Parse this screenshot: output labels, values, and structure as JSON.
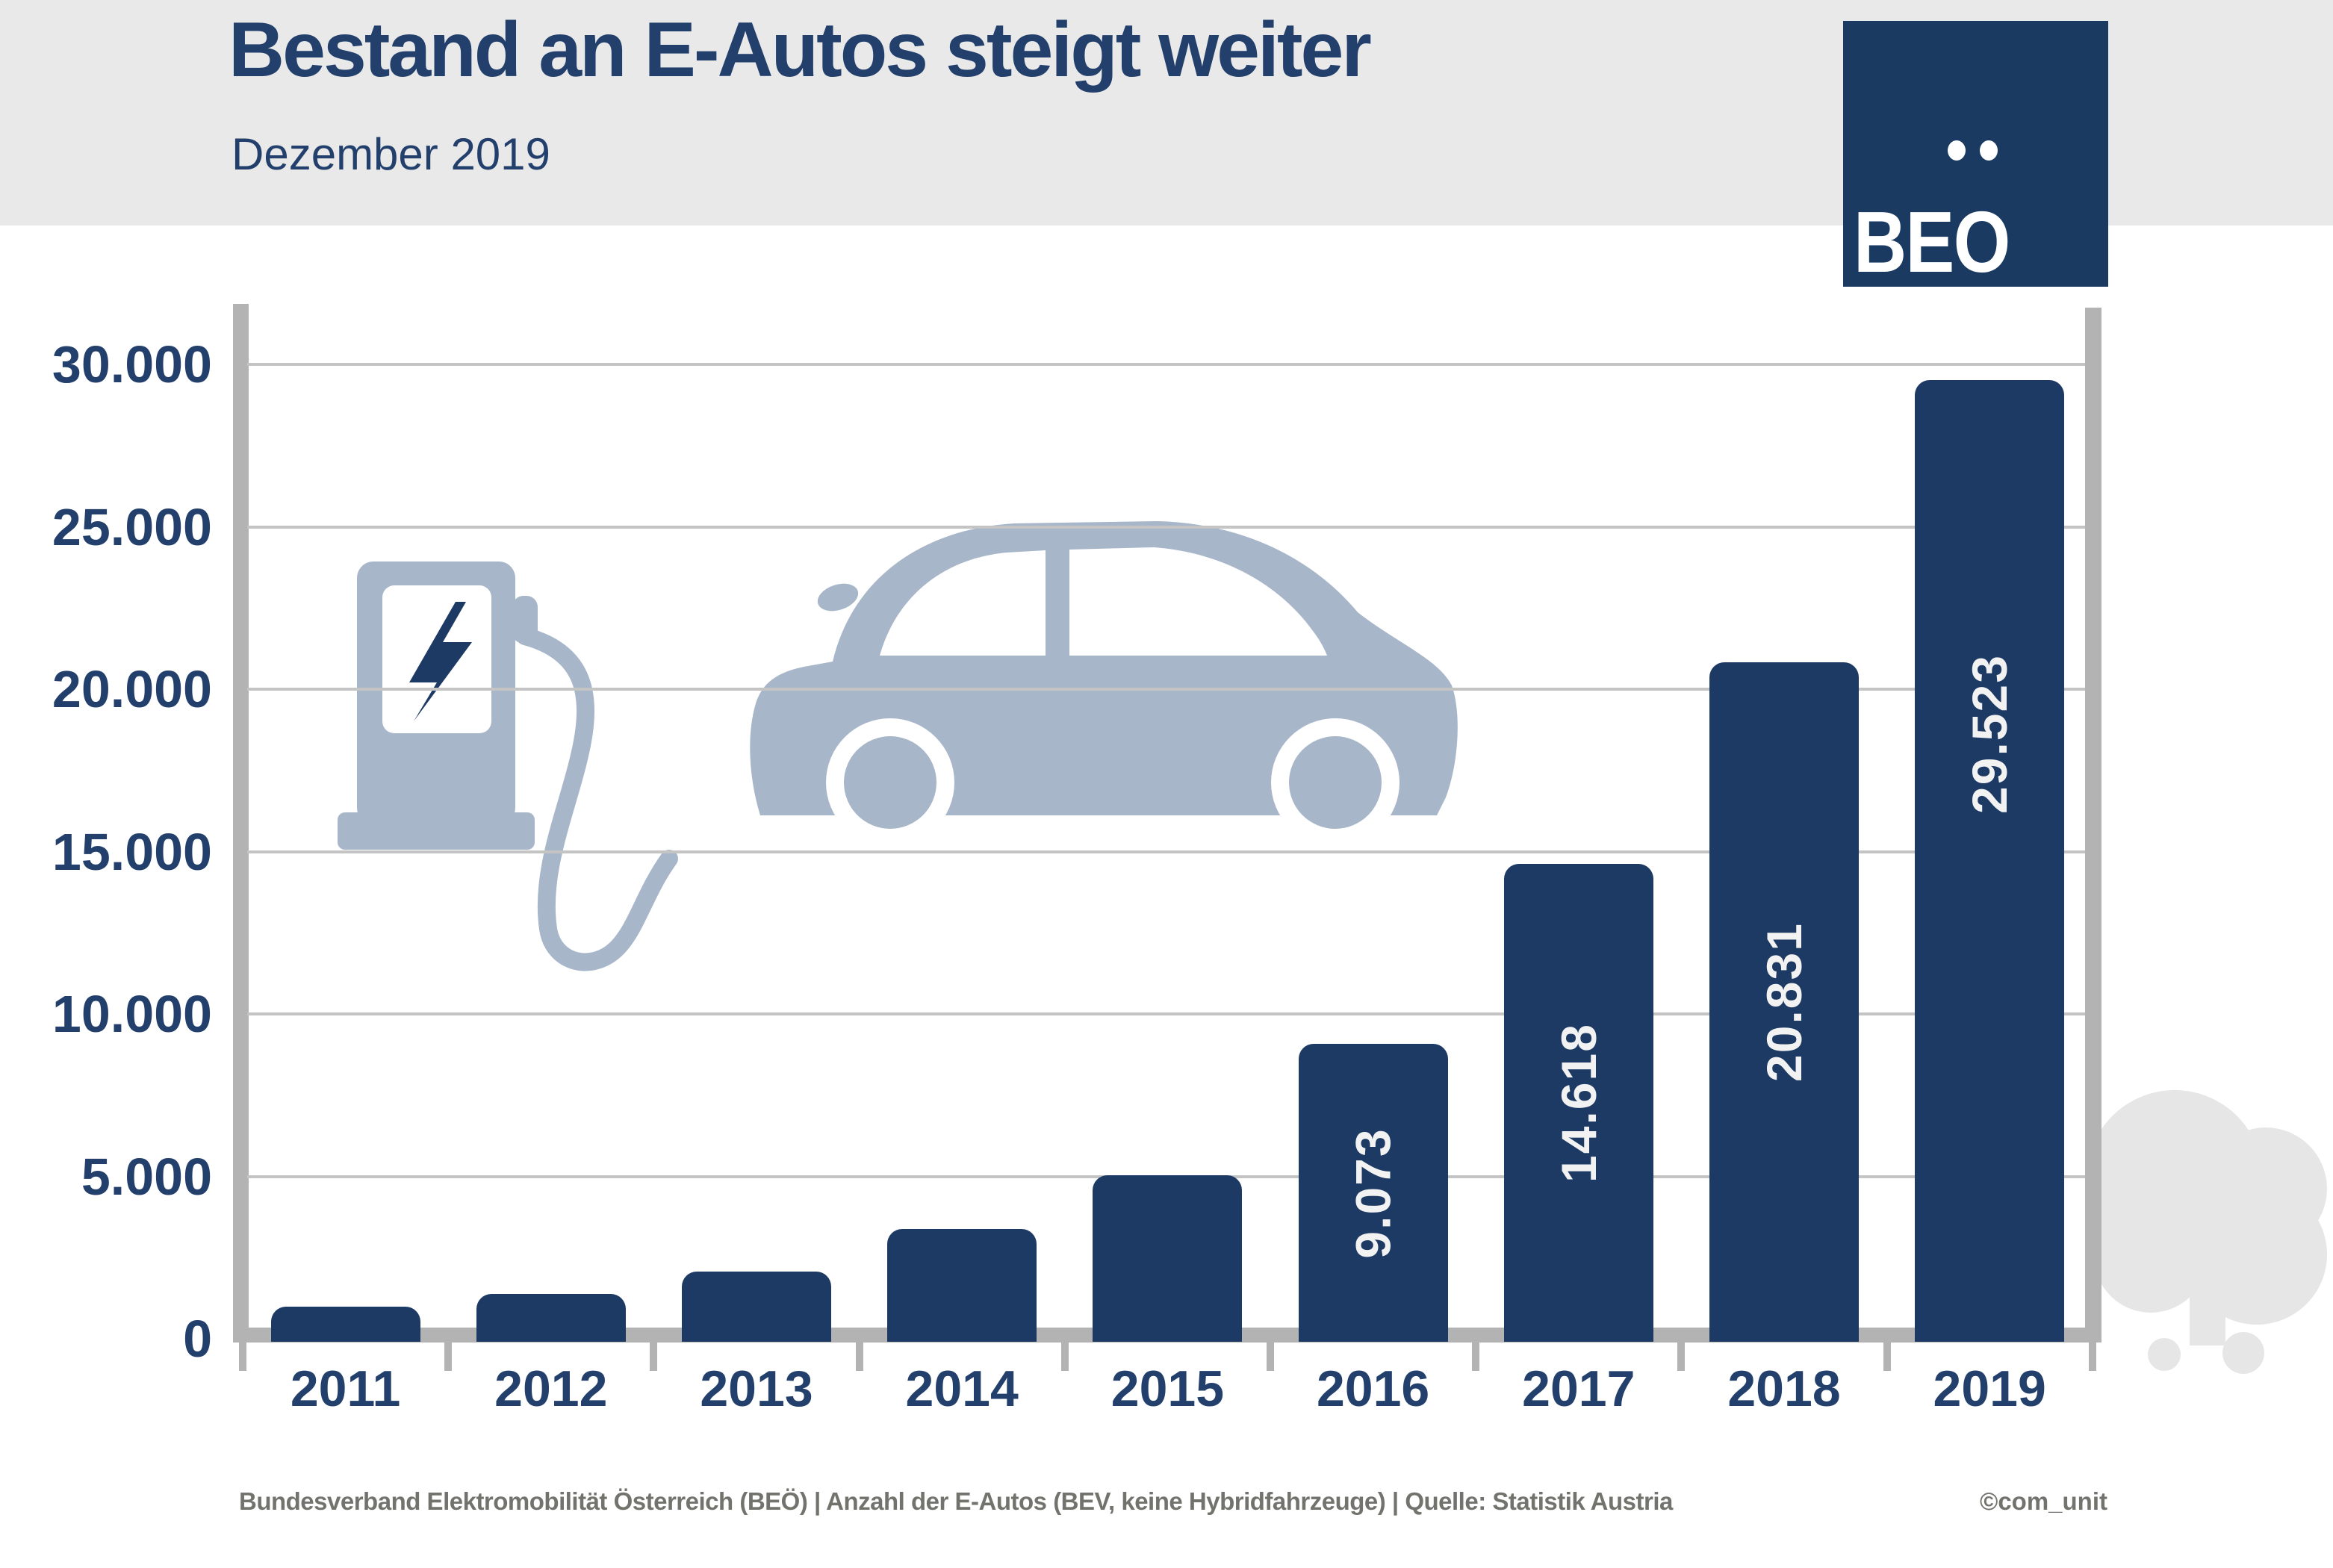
{
  "header": {
    "title": "Bestand an E-Autos steigt weiter",
    "subtitle": "Dezember 2019"
  },
  "logo": {
    "text": "BEO"
  },
  "chart_data": {
    "type": "bar",
    "title": "Bestand an E-Autos steigt weiter",
    "subtitle": "Dezember 2019",
    "categories": [
      "2011",
      "2012",
      "2013",
      "2014",
      "2015",
      "2016",
      "2017",
      "2018",
      "2019"
    ],
    "values": [
      989,
      1389,
      2070,
      3386,
      5032,
      9073,
      14618,
      20831,
      29523
    ],
    "bar_labels": [
      "",
      "",
      "",
      "",
      "",
      "9.073",
      "14.618",
      "20.831",
      "29.523"
    ],
    "values_estimated": [
      true,
      true,
      true,
      true,
      true,
      false,
      false,
      false,
      false
    ],
    "y_ticks": [
      {
        "label": "30.000",
        "value": 30000
      },
      {
        "label": "25.000",
        "value": 25000
      },
      {
        "label": "20.000",
        "value": 20000
      },
      {
        "label": "15.000",
        "value": 15000
      },
      {
        "label": "10.000",
        "value": 10000
      },
      {
        "label": "5.000",
        "value": 5000
      },
      {
        "label": "0",
        "value": 0
      }
    ],
    "ylim": [
      0,
      32000
    ],
    "xlabel": "",
    "ylabel": "",
    "grid": true,
    "legend_position": "none",
    "bar_color": "#1D3A64",
    "bar_label_color": "#F2F2F2"
  },
  "footer": {
    "source": "Bundesverband Elektromobilität Österreich (BEÖ) | Anzahl der E-Autos (BEV, keine Hybridfahrzeuge) | Quelle: Statistik Austria",
    "credit": "©com_unit"
  },
  "colors": {
    "navy": "#1D3A64",
    "navy_text": "#23406D",
    "logo_bg": "#1A3A62",
    "illustration_blue": "#A8B6C9",
    "grid": "#C4C4C4",
    "axis_gray": "#B3B3B3",
    "band": "#E9E9E9",
    "tree": "#E6E6E6",
    "footer_text": "#73736E",
    "bar_label": "#F2F2F2"
  },
  "icons": {
    "charging_station": "ev-charging-station-icon",
    "lightning": "lightning-bolt-icon",
    "car": "electric-car-icon",
    "tree": "tree-icon",
    "umlaut_dots": "logo-umlaut-dots"
  }
}
